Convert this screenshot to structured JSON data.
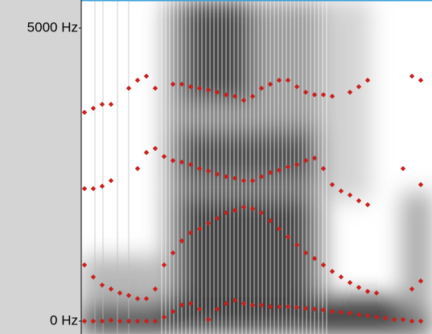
{
  "chart_data": {
    "type": "spectrogram",
    "categories": [
      null,
      null,
      null,
      null,
      null,
      null,
      null,
      null,
      null,
      null,
      null,
      null,
      null,
      null,
      null,
      null,
      null,
      null,
      null,
      null,
      null,
      null,
      null,
      null,
      null,
      null,
      null,
      null,
      null,
      null,
      null,
      null,
      null,
      null,
      null,
      null,
      null,
      null,
      null
    ],
    "ylim": [
      -219,
      5479
    ],
    "yticks": [
      {
        "value": 0,
        "label": "0 Hz"
      },
      {
        "value": 5000,
        "label": "5000 Hz"
      }
    ],
    "series": [
      {
        "color": "#c8201e",
        "values": [
          0,
          0,
          0,
          14,
          0,
          0,
          0,
          0,
          0,
          68,
          164,
          274,
          301,
          205,
          27,
          205,
          301,
          356,
          301,
          274,
          274,
          247,
          247,
          247,
          233,
          219,
          205,
          192,
          164,
          151,
          137,
          110,
          96,
          68,
          55,
          27,
          27,
          0,
          0
        ]
      },
      {
        "color": "#c8201e",
        "values": [
          959,
          753,
          616,
          548,
          480,
          438,
          384,
          384,
          548,
          959,
          1165,
          1370,
          1507,
          1576,
          1671,
          1754,
          1850,
          1891,
          1946,
          1918,
          1850,
          1713,
          1576,
          1439,
          1302,
          1165,
          1069,
          959,
          849,
          754,
          658,
          575,
          507,
          480,
          null,
          null,
          null,
          548,
          685
        ]
      },
      {
        "color": "#c8201e",
        "values": [
          2261,
          2261,
          2302,
          2398,
          null,
          null,
          2603,
          2877,
          2946,
          2809,
          2740,
          2713,
          2672,
          2603,
          2562,
          2507,
          2466,
          2439,
          2398,
          2398,
          2466,
          2535,
          2576,
          2631,
          2672,
          2740,
          2781,
          2603,
          2329,
          2220,
          2151,
          2055,
          1987,
          null,
          null,
          null,
          2603,
          null,
          2329
        ]
      },
      {
        "color": "#c8201e",
        "values": [
          3562,
          3631,
          3699,
          3699,
          null,
          3973,
          4110,
          4179,
          3973,
          null,
          4042,
          4042,
          4000,
          3973,
          3945,
          3905,
          3863,
          3836,
          3768,
          3836,
          3973,
          4042,
          4110,
          4110,
          4000,
          3905,
          3863,
          3863,
          3836,
          null,
          3905,
          4000,
          4110,
          null,
          null,
          null,
          null,
          4179,
          4110
        ]
      }
    ]
  }
}
